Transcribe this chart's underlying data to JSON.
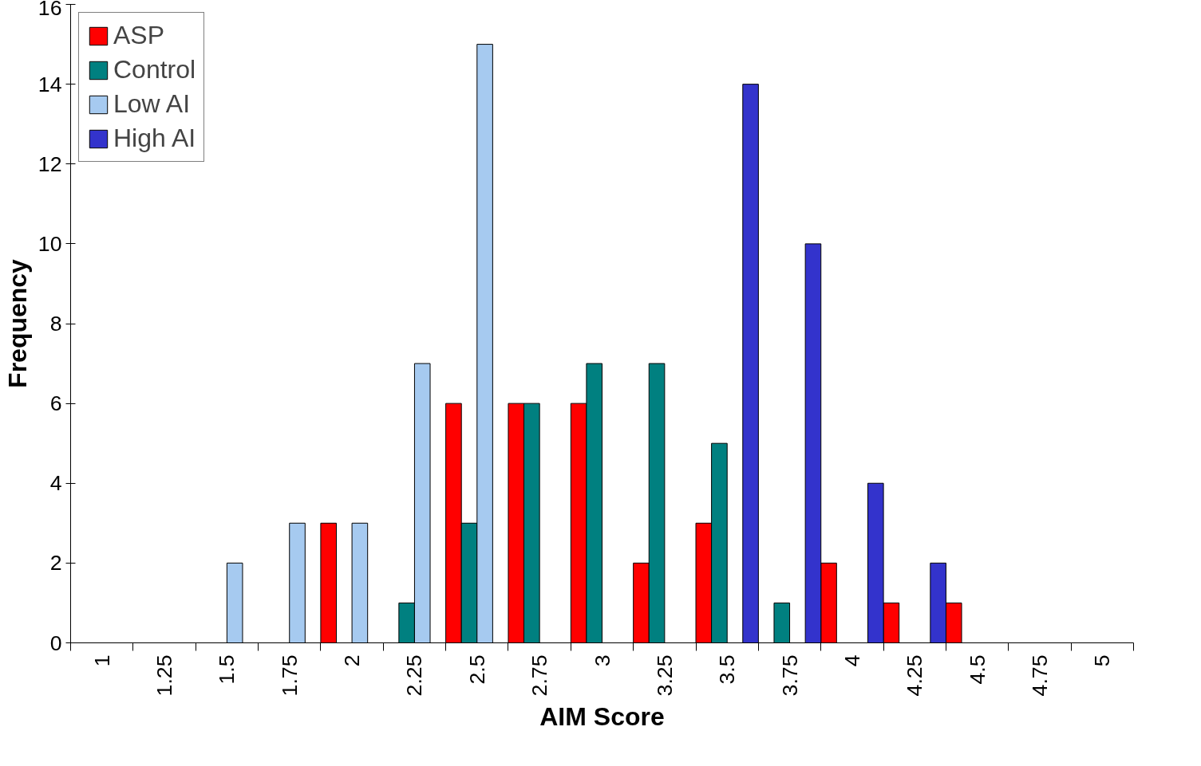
{
  "chart_data": {
    "type": "bar",
    "xlabel": "AIM Score",
    "ylabel": "Frequency",
    "categories": [
      "1",
      "1.25",
      "1.5",
      "1.75",
      "2",
      "2.25",
      "2.5",
      "2.75",
      "3",
      "3.25",
      "3.5",
      "3.75",
      "4",
      "4.25",
      "4.5",
      "4.75",
      "5"
    ],
    "series": [
      {
        "name": "ASP",
        "color": "#ff0000",
        "values": [
          null,
          null,
          null,
          null,
          3,
          null,
          6,
          6,
          6,
          2,
          3,
          null,
          2,
          1,
          1,
          null,
          null
        ]
      },
      {
        "name": "Control",
        "color": "#008080",
        "values": [
          null,
          null,
          null,
          null,
          null,
          1,
          3,
          6,
          7,
          7,
          5,
          1,
          null,
          null,
          null,
          null,
          null
        ]
      },
      {
        "name": "Low AI",
        "color": "#a6caf0",
        "values": [
          null,
          null,
          2,
          3,
          3,
          7,
          15,
          null,
          null,
          null,
          null,
          null,
          null,
          null,
          null,
          null,
          null
        ]
      },
      {
        "name": "High AI",
        "color": "#3333cc",
        "values": [
          null,
          null,
          null,
          null,
          null,
          null,
          null,
          null,
          null,
          null,
          14,
          10,
          4,
          2,
          null,
          null,
          null
        ]
      }
    ],
    "ylim": [
      0,
      16
    ],
    "yticks": [
      0,
      2,
      4,
      6,
      8,
      10,
      12,
      14,
      16
    ],
    "grid": false,
    "legend": "top left"
  }
}
